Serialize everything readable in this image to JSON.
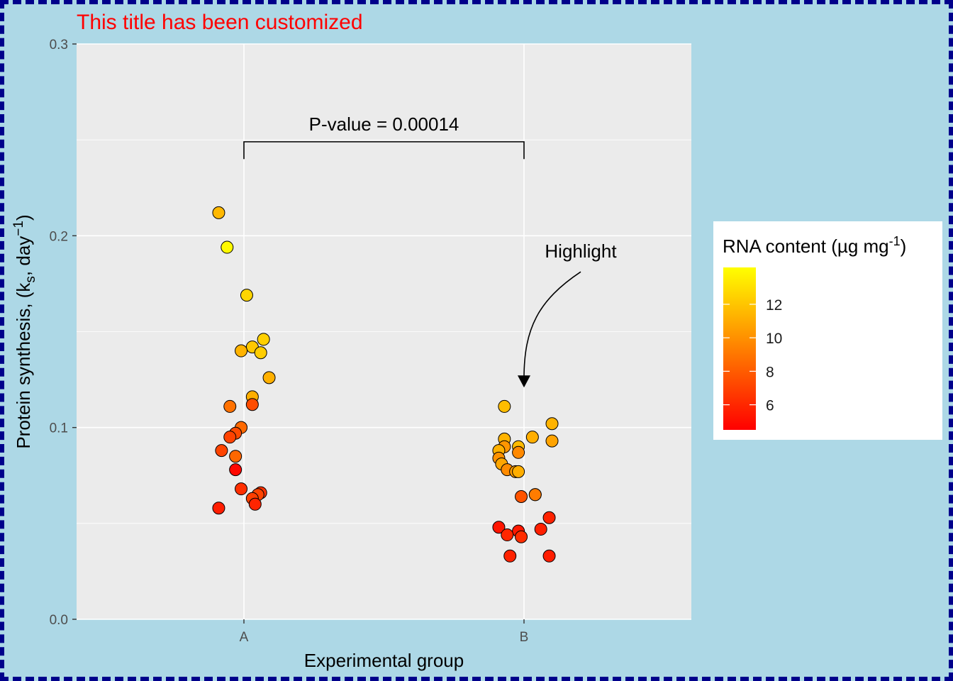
{
  "colors": {
    "background": "#ADD8E6",
    "border": "#00008B",
    "panel": "#EBEBEB",
    "grid": "#FFFFFF",
    "title": "#FF0000",
    "gradient_low": "#FF0000",
    "gradient_high": "#FFFF00"
  },
  "chart_data": {
    "type": "scatter",
    "title": "This title has been customized",
    "xlabel": "Experimental group",
    "ylabel": "Protein synthesis, (k_s, day^-1)",
    "ylabel_parts": {
      "main": "Protein synthesis, (k",
      "sub": "s",
      "mid": ", day",
      "sup": "−1",
      "end": ")"
    },
    "categories": [
      "A",
      "B"
    ],
    "ylim": [
      0,
      0.3
    ],
    "y_ticks": [
      0.0,
      0.1,
      0.2,
      0.3
    ],
    "y_tick_labels": [
      "0.0",
      "0.1",
      "0.2",
      "0.3"
    ],
    "color_scale": {
      "name": "RNA content (µg mg^-1)",
      "min": 4.5,
      "max": 14.2,
      "low": "#FF0000",
      "high": "#FFFF00"
    },
    "legend": {
      "title_parts": {
        "main": "RNA content (µg mg",
        "sup": "-1",
        "end": ")"
      },
      "breaks": [
        6,
        8,
        10,
        12
      ],
      "placement": "right"
    },
    "significance": {
      "label": "P-value = 0.00014",
      "from": "A",
      "to": "B",
      "y": 0.249,
      "tip_y": 0.24
    },
    "highlight": {
      "label": "Highlight",
      "target_group": "B",
      "target_y": 0.122
    },
    "series": [
      {
        "name": "A",
        "points": [
          {
            "dx": -0.09,
            "y": 0.212,
            "rna": 11.5
          },
          {
            "dx": -0.06,
            "y": 0.194,
            "rna": 14.0
          },
          {
            "dx": 0.01,
            "y": 0.169,
            "rna": 12.6
          },
          {
            "dx": 0.03,
            "y": 0.142,
            "rna": 12.1
          },
          {
            "dx": 0.07,
            "y": 0.146,
            "rna": 12.4
          },
          {
            "dx": -0.01,
            "y": 0.14,
            "rna": 11.3
          },
          {
            "dx": 0.06,
            "y": 0.139,
            "rna": 12.3
          },
          {
            "dx": 0.09,
            "y": 0.126,
            "rna": 11.2
          },
          {
            "dx": 0.03,
            "y": 0.116,
            "rna": 11.1
          },
          {
            "dx": -0.05,
            "y": 0.111,
            "rna": 8.8
          },
          {
            "dx": 0.03,
            "y": 0.112,
            "rna": 7.4
          },
          {
            "dx": -0.01,
            "y": 0.1,
            "rna": 8.5
          },
          {
            "dx": -0.03,
            "y": 0.097,
            "rna": 7.3
          },
          {
            "dx": -0.05,
            "y": 0.095,
            "rna": 7.0
          },
          {
            "dx": -0.08,
            "y": 0.088,
            "rna": 7.1
          },
          {
            "dx": -0.03,
            "y": 0.085,
            "rna": 8.4
          },
          {
            "dx": -0.03,
            "y": 0.078,
            "rna": 4.8
          },
          {
            "dx": -0.01,
            "y": 0.068,
            "rna": 6.3
          },
          {
            "dx": 0.06,
            "y": 0.066,
            "rna": 6.4
          },
          {
            "dx": 0.05,
            "y": 0.065,
            "rna": 7.1
          },
          {
            "dx": 0.03,
            "y": 0.063,
            "rna": 6.9
          },
          {
            "dx": 0.04,
            "y": 0.06,
            "rna": 5.9
          },
          {
            "dx": -0.09,
            "y": 0.058,
            "rna": 5.6
          }
        ]
      },
      {
        "name": "B",
        "points": [
          {
            "dx": -0.07,
            "y": 0.111,
            "rna": 11.7
          },
          {
            "dx": 0.1,
            "y": 0.102,
            "rna": 11.3
          },
          {
            "dx": 0.03,
            "y": 0.095,
            "rna": 11.1
          },
          {
            "dx": -0.07,
            "y": 0.094,
            "rna": 11.3
          },
          {
            "dx": 0.1,
            "y": 0.093,
            "rna": 10.7
          },
          {
            "dx": -0.07,
            "y": 0.09,
            "rna": 10.2
          },
          {
            "dx": -0.02,
            "y": 0.09,
            "rna": 11.6
          },
          {
            "dx": -0.09,
            "y": 0.088,
            "rna": 11.2
          },
          {
            "dx": -0.02,
            "y": 0.087,
            "rna": 9.7
          },
          {
            "dx": -0.09,
            "y": 0.084,
            "rna": 10.0
          },
          {
            "dx": -0.08,
            "y": 0.081,
            "rna": 10.8
          },
          {
            "dx": -0.06,
            "y": 0.078,
            "rna": 9.8
          },
          {
            "dx": -0.03,
            "y": 0.077,
            "rna": 10.5
          },
          {
            "dx": -0.02,
            "y": 0.077,
            "rna": 11.1
          },
          {
            "dx": 0.04,
            "y": 0.065,
            "rna": 9.0
          },
          {
            "dx": 0.04,
            "y": 0.065,
            "rna": 9.2
          },
          {
            "dx": -0.01,
            "y": 0.064,
            "rna": 7.7
          },
          {
            "dx": 0.09,
            "y": 0.053,
            "rna": 5.8
          },
          {
            "dx": -0.09,
            "y": 0.048,
            "rna": 5.3
          },
          {
            "dx": 0.06,
            "y": 0.047,
            "rna": 5.7
          },
          {
            "dx": -0.02,
            "y": 0.046,
            "rna": 5.4
          },
          {
            "dx": -0.06,
            "y": 0.044,
            "rna": 6.0
          },
          {
            "dx": -0.01,
            "y": 0.043,
            "rna": 6.2
          },
          {
            "dx": -0.05,
            "y": 0.033,
            "rna": 5.8
          },
          {
            "dx": 0.09,
            "y": 0.033,
            "rna": 5.6
          }
        ]
      }
    ]
  }
}
